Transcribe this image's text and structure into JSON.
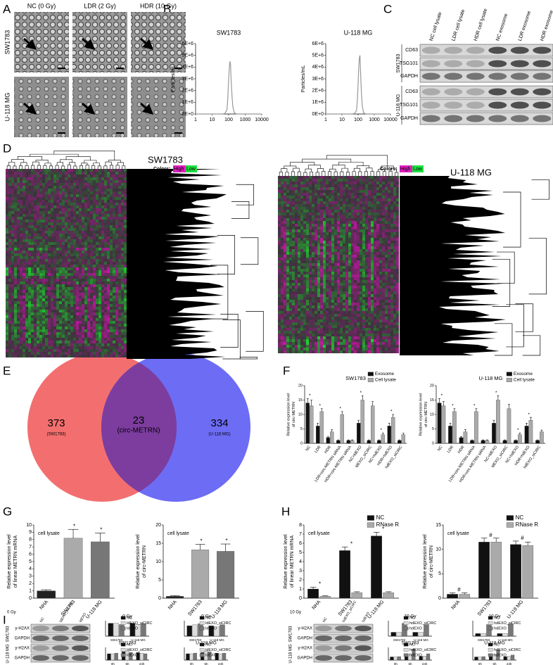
{
  "figure": {
    "panels": [
      "A",
      "B",
      "C",
      "D",
      "E",
      "F",
      "G",
      "H",
      "I"
    ],
    "A": {
      "columns": [
        "NC (0 Gy)",
        "LDR (2 Gy)",
        "HDR (10 Gy)"
      ],
      "rows": [
        "SW1783",
        "U-118 MG"
      ]
    },
    "C": {
      "lanes": [
        "NC cell lysate",
        "LDR cell lysate",
        "HDR cell lysate",
        "NC exosome",
        "LDR exosome",
        "HDR exosome"
      ],
      "groups": [
        {
          "name": "SW1783",
          "bands": [
            "CD63",
            "TSG101",
            "GAPDH"
          ]
        },
        {
          "name": "U-118 MG",
          "bands": [
            "CD63",
            "TSG101",
            "GAPDH"
          ]
        }
      ]
    },
    "D": {
      "heatmaps": [
        {
          "title": "SW1783"
        },
        {
          "title": "U-118 MG"
        }
      ],
      "legend": {
        "label": "Colors:",
        "high": "High",
        "low": "Low"
      }
    },
    "E": {
      "sets": [
        {
          "count": 373,
          "name": "(SW1783)"
        },
        {
          "count": 23,
          "name": "(circ-METRN)"
        },
        {
          "count": 334,
          "name": "(U-118 MG)"
        }
      ]
    },
    "I": {
      "blots": [
        {
          "dose": "0 Gy",
          "lanes": [
            "NC",
            "ldEXO_siCIRC",
            "ldEXO"
          ],
          "groups": [
            {
              "name": "SW1783",
              "bands": [
                "γ-H2AX",
                "GAPDH"
              ]
            },
            {
              "name": "U-118 MG",
              "bands": [
                "γ-H2AX",
                "GAPDH"
              ]
            }
          ]
        },
        {
          "dose": "10 Gy",
          "lanes": [
            "NC",
            "hdEXO_siCIRC",
            "hdEXO"
          ],
          "groups": [
            {
              "name": "SW1783",
              "bands": [
                "γ-H2AX",
                "GAPDH"
              ]
            },
            {
              "name": "U-118 MG",
              "bands": [
                "γ-H2AX",
                "GAPDH"
              ]
            }
          ]
        }
      ]
    }
  },
  "chart_data": [
    {
      "type": "line",
      "title": "SW1783",
      "ylabel": [
        "Particles/mL"
      ],
      "log_x": true,
      "color": "#999999",
      "x": [
        1,
        10,
        40,
        60,
        80,
        90,
        100,
        110,
        120,
        130,
        140,
        160,
        180,
        220,
        300,
        500,
        1000,
        10000
      ],
      "values": [
        0,
        0,
        0,
        50000,
        400000,
        1500000,
        3000000,
        4000000,
        4500000,
        4200000,
        3000000,
        1500000,
        600000,
        100000,
        0,
        0,
        0,
        0
      ],
      "xlim": [
        1,
        10000
      ],
      "xticks": [
        1,
        10,
        100,
        1000,
        10000
      ],
      "ylim": [
        0,
        6000000
      ],
      "yticks": [
        {
          "value": 0,
          "label": "0E+0"
        },
        {
          "value": 1000000,
          "label": "1E+6"
        },
        {
          "value": 2000000,
          "label": "2E+6"
        },
        {
          "value": 3000000,
          "label": "3E+6"
        },
        {
          "value": 4000000,
          "label": "4E+6"
        },
        {
          "value": 5000000,
          "label": "5E+6"
        },
        {
          "value": 6000000,
          "label": "6E+6"
        }
      ]
    },
    {
      "type": "line",
      "title": "U-118 MG",
      "ylabel": [
        "Particles/mL"
      ],
      "log_x": true,
      "color": "#999999",
      "x": [
        1,
        10,
        40,
        60,
        80,
        90,
        100,
        110,
        120,
        130,
        140,
        160,
        180,
        220,
        300,
        500,
        1000,
        10000
      ],
      "values": [
        0,
        0,
        0,
        50000,
        300000,
        1200000,
        2600000,
        4000000,
        4800000,
        5000000,
        3800000,
        1800000,
        700000,
        100000,
        0,
        0,
        0,
        0
      ],
      "xlim": [
        1,
        10000
      ],
      "xticks": [
        1,
        10,
        100,
        1000,
        10000
      ],
      "ylim": [
        0,
        6000000
      ],
      "yticks": [
        {
          "value": 0,
          "label": "0E+0"
        },
        {
          "value": 1000000,
          "label": "1E+6"
        },
        {
          "value": 2000000,
          "label": "2E+6"
        },
        {
          "value": 3000000,
          "label": "3E+6"
        },
        {
          "value": 4000000,
          "label": "4E+6"
        },
        {
          "value": 5000000,
          "label": "5E+6"
        },
        {
          "value": 6000000,
          "label": "6E+6"
        }
      ]
    },
    {
      "type": "bar",
      "title": "SW1783",
      "ylabel": [
        "Relative expression level",
        "of circ-METRN"
      ],
      "categories": [
        "NC",
        "LDR",
        "HDR",
        "LDR+circ-METRN siRNA",
        "HDR+circ-METRN siRNA",
        "NC+ldEXO",
        "ldEXO_siCIRC",
        "NC+hdEXO",
        "HDR+hdEXO",
        "hdEXO_siCIRC"
      ],
      "series": [
        {
          "name": "Exosome",
          "color": "#111111",
          "values": [
            14,
            6,
            2,
            1,
            1,
            7,
            1,
            1,
            6,
            1
          ],
          "errors": [
            1.5,
            1,
            0.4,
            0.2,
            0.2,
            1,
            0.2,
            0.2,
            1,
            0.2
          ]
        },
        {
          "name": "Cell lysate",
          "color": "#aaaaaa",
          "values": [
            13,
            11,
            4,
            10,
            1,
            15,
            13,
            3,
            9,
            3
          ],
          "errors": [
            2,
            1,
            0.8,
            1,
            0.2,
            1.5,
            1.5,
            0.6,
            1,
            0.5
          ]
        }
      ],
      "ylim": [
        0,
        20
      ],
      "yticks": [
        0,
        5,
        10,
        15,
        20
      ],
      "legend": "upper right",
      "sig": [
        "*",
        "*",
        null,
        "*",
        null,
        "*",
        null,
        "*",
        "*",
        null
      ]
    },
    {
      "type": "bar",
      "title": "U-118 MG",
      "ylabel": [
        "Relative expression level",
        "of circ-METRN"
      ],
      "categories": [
        "NC",
        "LDR",
        "HDR",
        "LDR+circ-METRN siRNA",
        "HDR+circ-METRN siRNA",
        "NC+ldEXO",
        "ldEXO_siCIRC",
        "NC+hdEXO",
        "HDR+hdEXO",
        "hdEXO_siCIRC"
      ],
      "series": [
        {
          "name": "Exosome",
          "color": "#111111",
          "values": [
            14,
            6,
            2,
            1,
            1,
            7,
            1,
            1,
            6,
            1
          ],
          "errors": [
            1.5,
            1,
            0.4,
            0.2,
            0.2,
            1,
            0.2,
            0.2,
            1,
            0.2
          ]
        },
        {
          "name": "Cell lysate",
          "color": "#aaaaaa",
          "values": [
            13,
            11,
            4,
            11,
            1,
            15,
            12,
            3,
            8,
            4
          ],
          "errors": [
            1.5,
            1,
            0.8,
            1,
            0.2,
            1.5,
            1.5,
            0.6,
            1,
            0.6
          ]
        }
      ],
      "ylim": [
        0,
        20
      ],
      "yticks": [
        0,
        5,
        10,
        15,
        20
      ],
      "legend": "upper right",
      "sig": [
        "*",
        "*",
        null,
        "*",
        null,
        "*",
        null,
        "*",
        "*",
        null
      ]
    },
    {
      "type": "bar",
      "annotation": "cell lysate",
      "ylabel": [
        "Relative expression level",
        "of linear METRN mRNA"
      ],
      "categories": [
        "NHA",
        "SW1783",
        "U-118 MG"
      ],
      "series": [
        {
          "colors": [
            "#222222",
            "#aaaaaa",
            "#777777"
          ],
          "values": [
            1,
            8.2,
            7.7
          ],
          "errors": [
            0.15,
            1.2,
            1.2
          ]
        }
      ],
      "ylim": [
        0,
        10
      ],
      "yticks": [
        0,
        1,
        2,
        3,
        4,
        5,
        6,
        7,
        8,
        9,
        10
      ],
      "sig": [
        null,
        "*",
        "*"
      ]
    },
    {
      "type": "bar",
      "annotation": "cell lysate",
      "ylabel": [
        "Relative expression level",
        "of circ-METRN"
      ],
      "categories": [
        "NHA",
        "SW1783",
        "U-118 MG"
      ],
      "series": [
        {
          "colors": [
            "#222222",
            "#aaaaaa",
            "#777777"
          ],
          "values": [
            0.5,
            13.2,
            12.8
          ],
          "errors": [
            0.2,
            1.5,
            2
          ]
        }
      ],
      "ylim": [
        0,
        20
      ],
      "yticks": [
        0,
        5,
        10,
        15,
        20
      ],
      "sig": [
        null,
        "*",
        "*"
      ]
    },
    {
      "type": "bar",
      "annotation": "cell lysate",
      "ylabel": [
        "Relative expression level",
        "of linear METRN mRNA"
      ],
      "categories": [
        "NHA",
        "SW1783",
        "U-118 MG"
      ],
      "series": [
        {
          "name": "NC",
          "color": "#111111",
          "values": [
            1,
            5.2,
            6.8
          ],
          "errors": [
            0.2,
            0.4,
            0.4
          ]
        },
        {
          "name": "RNase R",
          "color": "#aaaaaa",
          "values": [
            0.2,
            0.6,
            0.6
          ],
          "errors": [
            0.05,
            0.1,
            0.1
          ]
        }
      ],
      "ylim": [
        0,
        8
      ],
      "yticks": [
        0,
        1,
        2,
        3,
        4,
        5,
        6,
        7,
        8
      ],
      "legend": "upper right",
      "sig": [
        "*",
        "*",
        "*"
      ]
    },
    {
      "type": "bar",
      "annotation": "cell lysate",
      "ylabel": [
        "Relative expression level",
        "of circ-METRN"
      ],
      "categories": [
        "NHA",
        "SW1783",
        "U-118 MG"
      ],
      "series": [
        {
          "name": "NC",
          "color": "#111111",
          "values": [
            0.8,
            11.5,
            11
          ],
          "errors": [
            0.3,
            0.8,
            0.7
          ]
        },
        {
          "name": "RNase R",
          "color": "#aaaaaa",
          "values": [
            0.8,
            11.5,
            10.8
          ],
          "errors": [
            0.3,
            0.8,
            0.7
          ]
        }
      ],
      "ylim": [
        0,
        15
      ],
      "yticks": [
        0,
        5,
        10,
        15
      ],
      "legend": "upper right",
      "sig": [
        "#",
        "#",
        "#"
      ]
    },
    {
      "type": "bar",
      "title": "0 Gy",
      "categories": [
        "SW1783",
        "U-118 MG"
      ],
      "legend": "upper right",
      "series": [
        {
          "name": "NC",
          "color": "#111111",
          "values": [
            0.5,
            0.5
          ]
        },
        {
          "name": "ldEXO_siCIRC",
          "color": "#dddddd",
          "values": [
            0.5,
            0.45
          ]
        },
        {
          "name": "ldEXO",
          "color": "#777777",
          "values": [
            0.45,
            0.48
          ]
        }
      ],
      "ylim": [
        0,
        0.6
      ]
    },
    {
      "type": "bar",
      "title": "0 Gy",
      "categories": [
        "SW1783",
        "U-118 MG"
      ],
      "legend": "upper right",
      "series": [
        {
          "name": "NC",
          "color": "#111111",
          "values": [
            1,
            1
          ]
        },
        {
          "name": "ldEXO_siCIRC",
          "color": "#dddddd",
          "values": [
            1.1,
            0.9
          ]
        },
        {
          "name": "ldEXO",
          "color": "#777777",
          "values": [
            1.2,
            1.1
          ]
        }
      ],
      "ylim": [
        0,
        1.5
      ]
    },
    {
      "type": "bar",
      "title": "SW1783",
      "categories": [
        "0h",
        "6h",
        "24h"
      ],
      "legend": "upper right",
      "series": [
        {
          "name": "NC",
          "color": "#111111",
          "values": [
            1,
            1.3,
            1.2
          ]
        },
        {
          "name": "ldEXO_siCIRC",
          "color": "#dddddd",
          "values": [
            1,
            1.4,
            1.1
          ]
        },
        {
          "name": "ldEXO",
          "color": "#777777",
          "values": [
            1.1,
            1.2,
            1
          ]
        }
      ],
      "ylim": [
        0,
        2
      ]
    },
    {
      "type": "bar",
      "title": "U-118 MG",
      "categories": [
        "0h",
        "6h",
        "24h"
      ],
      "legend": "upper right",
      "series": [
        {
          "name": "NC",
          "color": "#111111",
          "values": [
            1,
            1.2,
            1.1
          ]
        },
        {
          "name": "ldEXO_siCIRC",
          "color": "#dddddd",
          "values": [
            1,
            1.4,
            1
          ]
        },
        {
          "name": "ldEXO",
          "color": "#777777",
          "values": [
            1.1,
            1.3,
            1.1
          ]
        }
      ],
      "ylim": [
        0,
        2
      ]
    },
    {
      "type": "bar",
      "title": "10 Gy",
      "categories": [
        "SW1783",
        "U-118 MG"
      ],
      "legend": "upper right",
      "series": [
        {
          "name": "NC",
          "color": "#111111",
          "values": [
            0.3,
            0.3
          ]
        },
        {
          "name": "hdEXO_siCIRC",
          "color": "#dddddd",
          "values": [
            0.3,
            0.3
          ]
        },
        {
          "name": "hdEXO",
          "color": "#777777",
          "values": [
            1,
            0.9
          ]
        }
      ],
      "ylim": [
        0,
        1.2
      ]
    },
    {
      "type": "bar",
      "title": "10 Gy",
      "categories": [
        "SW1783",
        "U-118 MG"
      ],
      "legend": "upper right",
      "series": [
        {
          "name": "NC",
          "color": "#111111",
          "values": [
            0.4,
            0.4
          ]
        },
        {
          "name": "hdEXO_siCIRC",
          "color": "#dddddd",
          "values": [
            0.4,
            0.4
          ]
        },
        {
          "name": "hdEXO",
          "color": "#777777",
          "values": [
            1.8,
            1.9
          ]
        }
      ],
      "ylim": [
        0,
        2.4
      ]
    },
    {
      "type": "bar",
      "title": "SW1783",
      "categories": [
        "0h",
        "6h",
        "24h"
      ],
      "legend": "upper right",
      "series": [
        {
          "name": "NC",
          "color": "#111111",
          "values": [
            1,
            1.5,
            1.2
          ]
        },
        {
          "name": "hdEXO_siCIRC",
          "color": "#dddddd",
          "values": [
            1,
            1.8,
            1.3
          ]
        },
        {
          "name": "hdEXO",
          "color": "#777777",
          "values": [
            1.1,
            3.5,
            2
          ]
        }
      ],
      "ylim": [
        0,
        4
      ]
    },
    {
      "type": "bar",
      "title": "U-118 MG",
      "categories": [
        "0h",
        "6h",
        "24h"
      ],
      "legend": "upper right",
      "series": [
        {
          "name": "NC",
          "color": "#111111",
          "values": [
            1,
            1.4,
            1.1
          ]
        },
        {
          "name": "hdEXO_siCIRC",
          "color": "#dddddd",
          "values": [
            1,
            1.7,
            1.2
          ]
        },
        {
          "name": "hdEXO",
          "color": "#777777",
          "values": [
            1.1,
            3.2,
            1.6
          ]
        }
      ],
      "ylim": [
        0,
        4
      ]
    }
  ]
}
